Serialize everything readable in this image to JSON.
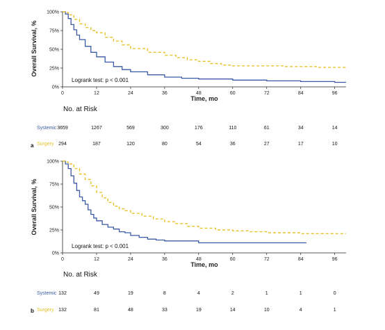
{
  "colors": {
    "systemic": "#3a5aa6",
    "surgery": "#e6c229",
    "axis": "#222222"
  },
  "chart_data": [
    {
      "type": "line",
      "panel_label": "a",
      "ylabel": "Overall Survival, %",
      "xlabel": "Time, mo",
      "xlim": [
        0,
        100
      ],
      "ylim": [
        0,
        100
      ],
      "x_ticks": [
        0,
        12,
        24,
        36,
        48,
        60,
        72,
        84,
        96
      ],
      "y_ticks": [
        0,
        25,
        50,
        75,
        100
      ],
      "y_tick_labels": [
        "0%",
        "25%",
        "50%",
        "75%",
        "100%"
      ],
      "annotation": "Logrank test: p < 0.001",
      "series": [
        {
          "name": "Systemic",
          "key": "systemic",
          "style": "solid",
          "points": [
            [
              0,
              100
            ],
            [
              1,
              97
            ],
            [
              2,
              91
            ],
            [
              3,
              83
            ],
            [
              4,
              76
            ],
            [
              5,
              69
            ],
            [
              6,
              63
            ],
            [
              8,
              54
            ],
            [
              10,
              46
            ],
            [
              12,
              40
            ],
            [
              15,
              33
            ],
            [
              18,
              27
            ],
            [
              21,
              23
            ],
            [
              24,
              20
            ],
            [
              30,
              16
            ],
            [
              36,
              13
            ],
            [
              42,
              11.5
            ],
            [
              48,
              10.5
            ],
            [
              60,
              9
            ],
            [
              72,
              8
            ],
            [
              84,
              7
            ],
            [
              96,
              6
            ],
            [
              100,
              6
            ]
          ]
        },
        {
          "name": "Surgery",
          "key": "surgery",
          "style": "dashed",
          "points": [
            [
              0,
              100
            ],
            [
              1,
              99
            ],
            [
              2,
              96
            ],
            [
              4,
              90
            ],
            [
              6,
              84
            ],
            [
              8,
              79
            ],
            [
              10,
              75
            ],
            [
              12,
              72
            ],
            [
              15,
              66
            ],
            [
              18,
              61
            ],
            [
              21,
              56
            ],
            [
              24,
              51
            ],
            [
              30,
              46
            ],
            [
              36,
              42
            ],
            [
              40,
              39
            ],
            [
              44,
              36
            ],
            [
              48,
              34
            ],
            [
              52,
              31
            ],
            [
              56,
              29
            ],
            [
              60,
              28
            ],
            [
              66,
              28
            ],
            [
              72,
              28
            ],
            [
              78,
              27
            ],
            [
              84,
              27
            ],
            [
              90,
              26
            ],
            [
              96,
              26
            ],
            [
              99,
              26
            ],
            [
              100,
              24
            ]
          ]
        }
      ],
      "risk_table": {
        "title": "No. at Risk",
        "rows": [
          {
            "label": "Systemic",
            "key": "systemic",
            "values": [
              "3659",
              "1267",
              "569",
              "300",
              "176",
              "110",
              "61",
              "34",
              "14"
            ]
          },
          {
            "label": "Surgery",
            "key": "surgery",
            "values": [
              "294",
              "187",
              "120",
              "80",
              "54",
              "36",
              "27",
              "17",
              "10"
            ]
          }
        ]
      }
    },
    {
      "type": "line",
      "panel_label": "b",
      "ylabel": "Overall Survival, %",
      "xlabel": "Time, mo",
      "xlim": [
        0,
        100
      ],
      "ylim": [
        0,
        100
      ],
      "x_ticks": [
        0,
        12,
        24,
        36,
        48,
        60,
        72,
        84,
        96
      ],
      "y_ticks": [
        0,
        25,
        50,
        75,
        100
      ],
      "y_tick_labels": [
        "0%",
        "25%",
        "50%",
        "75%",
        "100%"
      ],
      "annotation": "Logrank test: p < 0.001",
      "series": [
        {
          "name": "Systemic",
          "key": "systemic",
          "style": "solid",
          "points": [
            [
              0,
              100
            ],
            [
              1,
              97
            ],
            [
              2,
              92
            ],
            [
              3,
              84
            ],
            [
              4,
              76
            ],
            [
              5,
              68
            ],
            [
              6,
              61
            ],
            [
              7,
              57
            ],
            [
              8,
              53
            ],
            [
              9,
              47
            ],
            [
              10,
              42
            ],
            [
              11,
              38
            ],
            [
              12,
              35
            ],
            [
              14,
              31
            ],
            [
              16,
              28
            ],
            [
              18,
              26
            ],
            [
              20,
              23
            ],
            [
              22,
              22
            ],
            [
              24,
              19
            ],
            [
              27,
              17
            ],
            [
              30,
              15
            ],
            [
              33,
              14
            ],
            [
              36,
              13
            ],
            [
              42,
              13
            ],
            [
              48,
              11
            ],
            [
              60,
              11
            ],
            [
              72,
              11
            ],
            [
              84,
              11
            ],
            [
              86,
              11
            ]
          ]
        },
        {
          "name": "Surgery",
          "key": "surgery",
          "style": "dashed",
          "points": [
            [
              0,
              100
            ],
            [
              1,
              99
            ],
            [
              2,
              97
            ],
            [
              4,
              92
            ],
            [
              6,
              86
            ],
            [
              8,
              80
            ],
            [
              10,
              73
            ],
            [
              12,
              66
            ],
            [
              14,
              60
            ],
            [
              16,
              55
            ],
            [
              18,
              51
            ],
            [
              20,
              48
            ],
            [
              22,
              46
            ],
            [
              24,
              43
            ],
            [
              28,
              40
            ],
            [
              32,
              37
            ],
            [
              36,
              34
            ],
            [
              40,
              32
            ],
            [
              44,
              29
            ],
            [
              48,
              27
            ],
            [
              54,
              25
            ],
            [
              60,
              24
            ],
            [
              66,
              23
            ],
            [
              72,
              22
            ],
            [
              80,
              22
            ],
            [
              84,
              21
            ],
            [
              90,
              21
            ],
            [
              96,
              21
            ],
            [
              100,
              21
            ]
          ]
        }
      ],
      "risk_table": {
        "title": "No. at Risk",
        "rows": [
          {
            "label": "Systemic",
            "key": "systemic",
            "values": [
              "132",
              "49",
              "19",
              "8",
              "4",
              "2",
              "1",
              "1",
              "0"
            ]
          },
          {
            "label": "Surgery",
            "key": "surgery",
            "values": [
              "132",
              "81",
              "48",
              "33",
              "19",
              "14",
              "10",
              "4",
              "1"
            ]
          }
        ]
      }
    }
  ]
}
